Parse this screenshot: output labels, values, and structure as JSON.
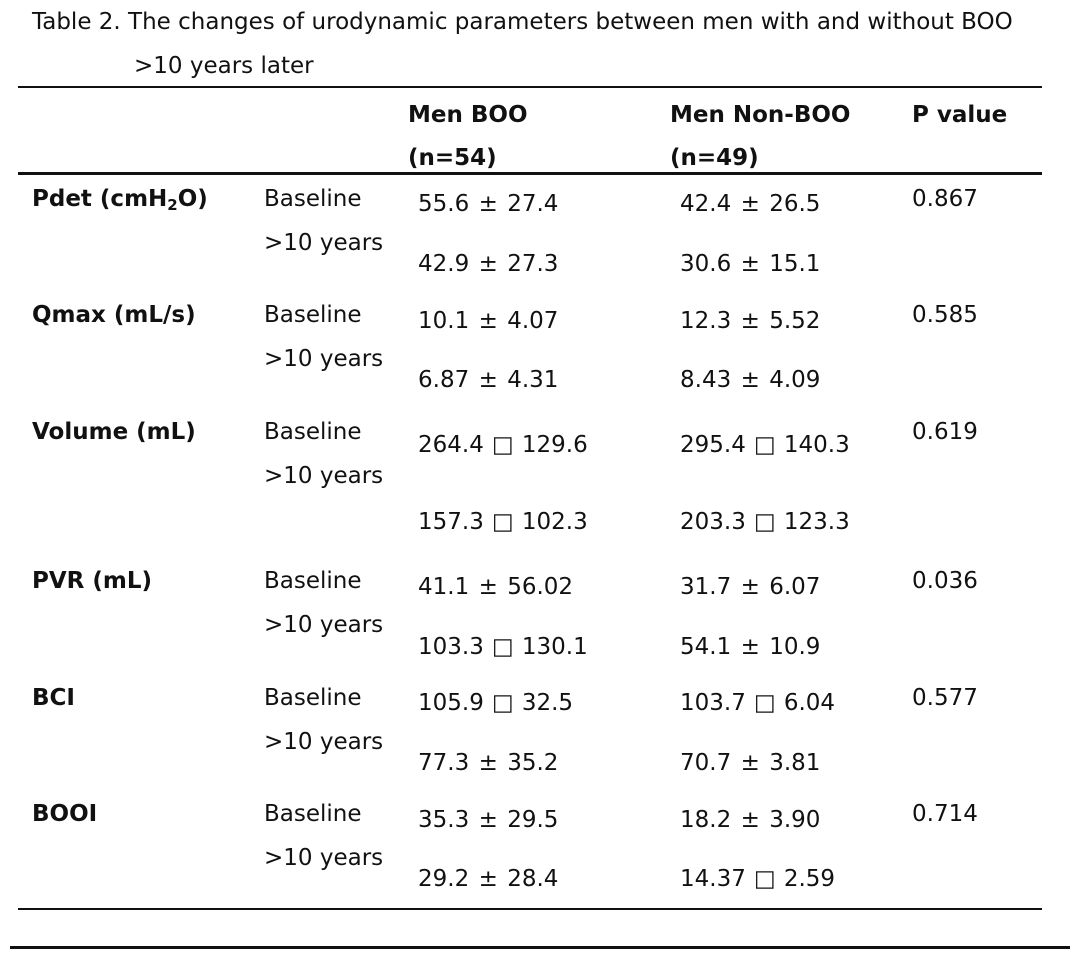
{
  "caption": {
    "line1": "Table 2. The changes of urodynamic parameters between men with and without BOO",
    "line2": ">10 years later"
  },
  "header": {
    "col1_line1": "Men BOO",
    "col1_line2": "(n=54)",
    "col2_line1": "Men Non-BOO",
    "col2_line2": "(n=49)",
    "col3": "P value"
  },
  "rows": [
    {
      "param_prefix": "Pdet (cmH",
      "param_sub": "2",
      "param_suffix": "O)",
      "time_baseline": "Baseline",
      "time_later": ">10 years",
      "boo_baseline_mean": "55.6",
      "boo_baseline_sep": "±",
      "boo_baseline_sd": "27.4",
      "boo_later_mean": "42.9",
      "boo_later_sep": "±",
      "boo_later_sd": "27.3",
      "non_baseline_mean": "42.4",
      "non_baseline_sep": "±",
      "non_baseline_sd": "26.5",
      "non_later_mean": "30.6",
      "non_later_sep": "±",
      "non_later_sd": "15.1",
      "p_value": "0.867"
    },
    {
      "param": "Qmax (mL/s)",
      "time_baseline": "Baseline",
      "time_later": ">10 years",
      "boo_baseline_mean": "10.1",
      "boo_baseline_sep": "±",
      "boo_baseline_sd": "4.07",
      "boo_later_mean": "6.87",
      "boo_later_sep": "±",
      "boo_later_sd": "4.31",
      "non_baseline_mean": "12.3",
      "non_baseline_sep": "±",
      "non_baseline_sd": "5.52",
      "non_later_mean": "8.43",
      "non_later_sep": "±",
      "non_later_sd": "4.09",
      "p_value": "0.585"
    },
    {
      "param": "Volume (mL)",
      "time_baseline": "Baseline",
      "time_later": ">10 years",
      "boo_baseline_mean": "264.4",
      "boo_baseline_sep": "□",
      "boo_baseline_sd": "129.6",
      "boo_later_mean": "157.3",
      "boo_later_sep": "□",
      "boo_later_sd": "102.3",
      "non_baseline_mean": "295.4",
      "non_baseline_sep": "□",
      "non_baseline_sd": "140.3",
      "non_later_mean": "203.3",
      "non_later_sep": "□",
      "non_later_sd": "123.3",
      "p_value": "0.619"
    },
    {
      "param": "PVR (mL)",
      "time_baseline": "Baseline",
      "time_later": ">10 years",
      "boo_baseline_mean": "41.1",
      "boo_baseline_sep": "±",
      "boo_baseline_sd": "56.02",
      "boo_later_mean": "103.3",
      "boo_later_sep": "□",
      "boo_later_sd": "130.1",
      "non_baseline_mean": "31.7",
      "non_baseline_sep": "±",
      "non_baseline_sd": "6.07",
      "non_later_mean": "54.1",
      "non_later_sep": "±",
      "non_later_sd": "10.9",
      "p_value": "0.036"
    },
    {
      "param": "BCI",
      "time_baseline": "Baseline",
      "time_later": ">10 years",
      "boo_baseline_mean": "105.9",
      "boo_baseline_sep": "□",
      "boo_baseline_sd": "32.5",
      "boo_later_mean": "77.3",
      "boo_later_sep": "±",
      "boo_later_sd": "35.2",
      "non_baseline_mean": "103.7",
      "non_baseline_sep": "□",
      "non_baseline_sd": "6.04",
      "non_later_mean": "70.7",
      "non_later_sep": "±",
      "non_later_sd": "3.81",
      "p_value": "0.577"
    },
    {
      "param": "BOOI",
      "time_baseline": "Baseline",
      "time_later": ">10 years",
      "boo_baseline_mean": "35.3",
      "boo_baseline_sep": "±",
      "boo_baseline_sd": "29.5",
      "boo_later_mean": "29.2",
      "boo_later_sep": "±",
      "boo_later_sd": "28.4",
      "non_baseline_mean": "18.2",
      "non_baseline_sep": "±",
      "non_baseline_sd": "3.90",
      "non_later_mean": "14.37",
      "non_later_sep": "□",
      "non_later_sd": "2.59",
      "p_value": "0.714"
    }
  ]
}
